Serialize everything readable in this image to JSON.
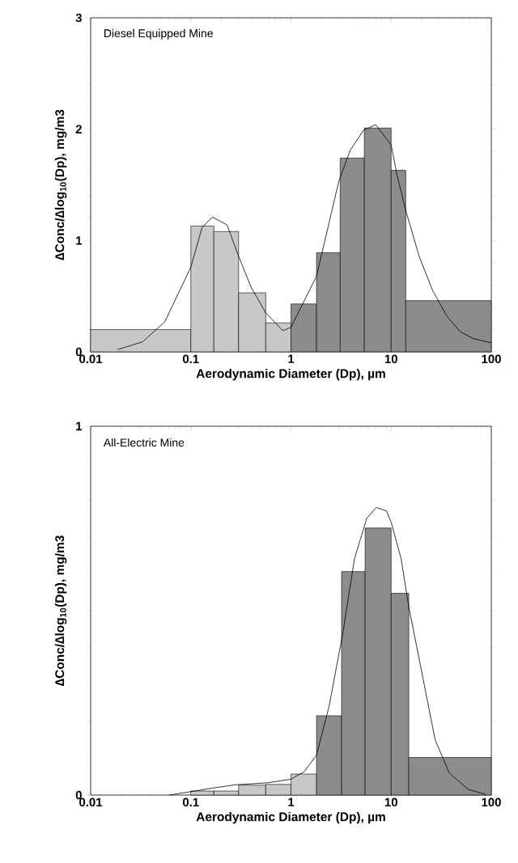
{
  "chart_data": [
    {
      "type": "histogram",
      "annotations": [
        "Diesel Equipped Mine"
      ],
      "xlabel": "Aerodynamic Diameter (Dp), µm",
      "ylabel": "∆Conc/∆log$_{10}$(Dp), mg/m3",
      "log": "x",
      "xlim": [
        0.01,
        100
      ],
      "ylim": [
        0,
        3
      ],
      "xticks": [
        0.01,
        0.1,
        1,
        10,
        100
      ],
      "yticks": [
        0,
        1,
        2,
        3
      ],
      "bins": [
        0.01,
        0.1,
        0.17,
        0.3,
        0.56,
        1,
        1.8,
        3.1,
        5.4,
        10,
        14,
        100
      ],
      "values": [
        0.2,
        1.13,
        1.08,
        0.53,
        0.26,
        0.43,
        0.89,
        1.74,
        2.01,
        1.63,
        0.46
      ],
      "colors": [
        "#c8c8c8",
        "#c8c8c8",
        "#c8c8c8",
        "#c8c8c8",
        "#c8c8c8",
        "#8c8c8c",
        "#8c8c8c",
        "#8c8c8c",
        "#8c8c8c",
        "#8c8c8c",
        "#8c8c8c"
      ],
      "series": [
        {
          "type": "line",
          "color": "#000000",
          "x": [
            0.0186,
            0.033,
            0.055,
            0.1,
            0.13,
            0.165,
            0.23,
            0.3,
            0.4,
            0.56,
            0.83,
            1,
            1.8,
            3.0,
            3.9,
            5.3,
            7.0,
            10,
            11.5,
            14,
            19,
            26,
            36,
            49,
            66,
            100
          ],
          "values": [
            0.02,
            0.09,
            0.27,
            0.76,
            1.12,
            1.21,
            1.14,
            0.86,
            0.58,
            0.35,
            0.19,
            0.22,
            0.68,
            1.53,
            1.81,
            1.99,
            2.04,
            1.86,
            1.58,
            1.27,
            0.86,
            0.55,
            0.32,
            0.18,
            0.12,
            0.08
          ]
        }
      ]
    },
    {
      "type": "histogram",
      "annotations": [
        "All-Electric  Mine"
      ],
      "xlabel": "Aerodynamic Diameter (Dp), µm",
      "ylabel": "∆Conc/∆log$_{10}$(Dp), mg/m3",
      "log": "x",
      "xlim": [
        0.01,
        100
      ],
      "ylim": [
        0,
        1
      ],
      "xticks": [
        0.01,
        0.1,
        1,
        10,
        100
      ],
      "yticks": [
        0,
        1
      ],
      "bins": [
        0.1,
        0.17,
        0.3,
        0.56,
        1,
        1.8,
        3.2,
        5.5,
        10,
        15,
        100
      ],
      "values": [
        0.011,
        0.011,
        0.027,
        0.029,
        0.057,
        0.215,
        0.606,
        0.724,
        0.547,
        0.102
      ],
      "colors": [
        "#c8c8c8",
        "#c8c8c8",
        "#c8c8c8",
        "#c8c8c8",
        "#c8c8c8",
        "#8c8c8c",
        "#8c8c8c",
        "#8c8c8c",
        "#8c8c8c",
        "#8c8c8c"
      ],
      "series": [
        {
          "type": "line",
          "color": "#000000",
          "x": [
            0.061,
            0.093,
            0.166,
            0.28,
            0.57,
            1,
            1.35,
            1.8,
            2.4,
            3.3,
            4.3,
            5.7,
            7.1,
            9,
            10,
            12.6,
            15,
            20,
            27.5,
            38,
            59,
            88
          ],
          "values": [
            0,
            0.008,
            0.019,
            0.028,
            0.033,
            0.043,
            0.063,
            0.108,
            0.24,
            0.44,
            0.64,
            0.75,
            0.78,
            0.77,
            0.74,
            0.64,
            0.51,
            0.34,
            0.15,
            0.06,
            0.015,
            0.002
          ]
        }
      ]
    }
  ]
}
